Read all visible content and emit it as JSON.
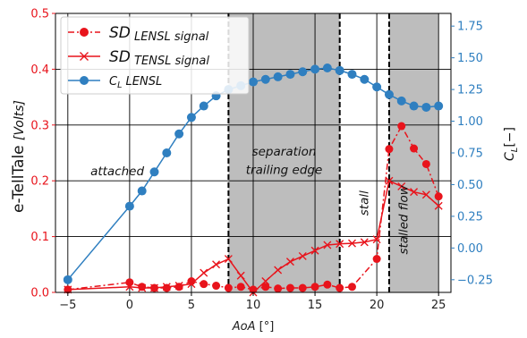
{
  "chart_data": {
    "type": "line",
    "xlabel": "AoA [°]",
    "ylabel_left": "e-TellTale",
    "ylabel_left_unit": "[Volts]",
    "ylabel_right": "C",
    "ylabel_right_sub": "L",
    "ylabel_right_unit": "[−]",
    "xlim": [
      -6,
      26
    ],
    "ylim_left": [
      0,
      0.5
    ],
    "ylim_right": [
      -0.35,
      1.85
    ],
    "xticks": [
      -5,
      0,
      5,
      10,
      15,
      20,
      25
    ],
    "yticks_left": [
      0.0,
      0.1,
      0.2,
      0.3,
      0.4,
      0.5
    ],
    "yticks_right": [
      -0.25,
      0.0,
      0.25,
      0.5,
      0.75,
      1.0,
      1.25,
      1.5,
      1.75
    ],
    "grid": true,
    "legend_position": "top-left",
    "shaded_regions": [
      [
        8,
        17
      ],
      [
        21,
        25
      ]
    ],
    "vertical_lines": [
      {
        "x": 8,
        "style": "dashed"
      },
      {
        "x": 17,
        "style": "dashed"
      },
      {
        "x": 21,
        "style": "dashed"
      }
    ],
    "annotations": [
      {
        "text": "attached",
        "x": -1.0,
        "y": 0.21,
        "rotation": 0
      },
      {
        "text": "separation",
        "x": 12.5,
        "y": 0.245,
        "rotation": 0
      },
      {
        "text": "trailing edge",
        "x": 12.5,
        "y": 0.212,
        "rotation": 0
      },
      {
        "text": "stall",
        "x": 19.3,
        "y": 0.16,
        "rotation": -90
      },
      {
        "text": "stalled flow",
        "x": 22.5,
        "y": 0.13,
        "rotation": -90
      }
    ],
    "series": [
      {
        "name": "SD",
        "name_sub": "LENSL signal",
        "axis": "left",
        "color": "#e8141c",
        "marker": "circle",
        "line": "dashdot",
        "x": [
          -5,
          0,
          1,
          2,
          3,
          4,
          5,
          6,
          7,
          8,
          9,
          10,
          11,
          12,
          13,
          14,
          15,
          16,
          17,
          18,
          20,
          21,
          22,
          23,
          24,
          25
        ],
        "y": [
          0.005,
          0.018,
          0.01,
          0.008,
          0.008,
          0.01,
          0.02,
          0.015,
          0.012,
          0.008,
          0.01,
          0.005,
          0.01,
          0.007,
          0.008,
          0.008,
          0.01,
          0.014,
          0.008,
          0.01,
          0.06,
          0.257,
          0.298,
          0.258,
          0.23,
          0.172
        ]
      },
      {
        "name": "SD",
        "name_sub": "TENSL signal",
        "axis": "left",
        "color": "#e8141c",
        "marker": "x",
        "line": "solid",
        "x": [
          -5,
          0,
          1,
          2,
          3,
          4,
          5,
          6,
          7,
          8,
          9,
          10,
          11,
          12,
          13,
          14,
          15,
          16,
          17,
          18,
          19,
          20,
          21,
          22,
          23,
          24,
          25
        ],
        "y": [
          0.005,
          0.01,
          0.008,
          0.008,
          0.01,
          0.012,
          0.015,
          0.035,
          0.05,
          0.06,
          0.03,
          0.0,
          0.02,
          0.04,
          0.055,
          0.065,
          0.075,
          0.085,
          0.087,
          0.088,
          0.09,
          0.095,
          0.2,
          0.19,
          0.18,
          0.175,
          0.155
        ]
      },
      {
        "name": "C",
        "name_sub": "L",
        "name_suffix": "LENSL",
        "axis": "right",
        "color": "#2f7fc0",
        "marker": "circle",
        "line": "solid",
        "x": [
          -5,
          0,
          1,
          2,
          3,
          4,
          5,
          6,
          7,
          8,
          9,
          10,
          11,
          12,
          13,
          14,
          15,
          16,
          17,
          18,
          19,
          20,
          21,
          22,
          23,
          24,
          25
        ],
        "y": [
          -0.25,
          0.33,
          0.45,
          0.6,
          0.75,
          0.9,
          1.03,
          1.12,
          1.2,
          1.25,
          1.28,
          1.31,
          1.33,
          1.35,
          1.37,
          1.39,
          1.41,
          1.42,
          1.4,
          1.37,
          1.33,
          1.27,
          1.21,
          1.16,
          1.12,
          1.11,
          1.12
        ]
      }
    ]
  }
}
